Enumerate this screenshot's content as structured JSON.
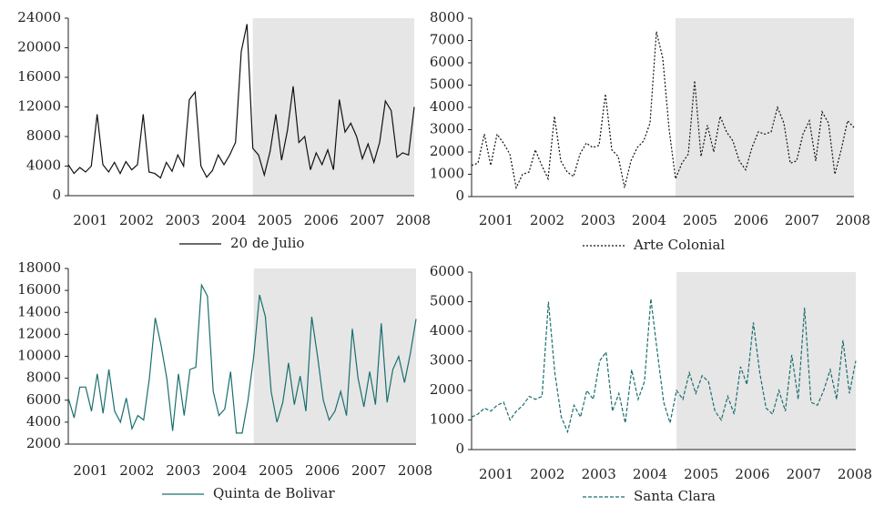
{
  "chart_data": [
    {
      "type": "line",
      "xlim": [
        2000.5,
        2008
      ],
      "xticks": [
        2001,
        2002,
        2003,
        2004,
        2005,
        2006,
        2007,
        2008
      ],
      "ylim": [
        0,
        24000
      ],
      "yticks": [
        0,
        4000,
        8000,
        12000,
        16000,
        20000,
        24000
      ],
      "shaded_xlim": [
        2004.5,
        2008
      ],
      "x": [
        2000.5,
        2000.625,
        2000.75,
        2000.875,
        2001,
        2001.125,
        2001.25,
        2001.375,
        2001.5,
        2001.625,
        2001.75,
        2001.875,
        2002,
        2002.125,
        2002.25,
        2002.375,
        2002.5,
        2002.625,
        2002.75,
        2002.875,
        2003,
        2003.125,
        2003.25,
        2003.375,
        2003.5,
        2003.625,
        2003.75,
        2003.875,
        2004,
        2004.125,
        2004.25,
        2004.375,
        2004.5,
        2004.625,
        2004.75,
        2004.875,
        2005,
        2005.125,
        2005.25,
        2005.375,
        2005.5,
        2005.625,
        2005.75,
        2005.875,
        2006,
        2006.125,
        2006.25,
        2006.375,
        2006.5,
        2006.625,
        2006.75,
        2006.875,
        2007,
        2007.125,
        2007.25,
        2007.375,
        2007.5,
        2007.625,
        2007.75,
        2007.875,
        2008
      ],
      "series": [
        {
          "name": "20 de Julio",
          "color": "#111111",
          "dash": "solid",
          "values": [
            4200,
            3000,
            3800,
            3200,
            4000,
            11000,
            4200,
            3200,
            4500,
            3000,
            4600,
            3500,
            4200,
            11000,
            3200,
            3000,
            2400,
            4500,
            3300,
            5500,
            4000,
            13000,
            14000,
            4000,
            2500,
            3400,
            5500,
            4200,
            5500,
            7200,
            19500,
            23200,
            6400,
            5500,
            2800,
            6000,
            11000,
            4800,
            8800,
            14800,
            7200,
            8000,
            3500,
            5800,
            4200,
            6200,
            3500,
            13000,
            8600,
            9800,
            8000,
            5000,
            7000,
            4500,
            7200,
            12800,
            11500,
            5200,
            5800,
            5500,
            12000
          ]
        }
      ]
    },
    {
      "type": "line",
      "xlim": [
        2000.5,
        2008
      ],
      "xticks": [
        2001,
        2002,
        2003,
        2004,
        2005,
        2006,
        2007,
        2008
      ],
      "ylim": [
        0,
        8000
      ],
      "yticks": [
        0,
        1000,
        2000,
        3000,
        4000,
        5000,
        6000,
        7000,
        8000
      ],
      "shaded_xlim": [
        2004.5,
        2008
      ],
      "x": [
        2000.5,
        2000.625,
        2000.75,
        2000.875,
        2001,
        2001.125,
        2001.25,
        2001.375,
        2001.5,
        2001.625,
        2001.75,
        2001.875,
        2002,
        2002.125,
        2002.25,
        2002.375,
        2002.5,
        2002.625,
        2002.75,
        2002.875,
        2003,
        2003.125,
        2003.25,
        2003.375,
        2003.5,
        2003.625,
        2003.75,
        2003.875,
        2004,
        2004.125,
        2004.25,
        2004.375,
        2004.5,
        2004.625,
        2004.75,
        2004.875,
        2005,
        2005.125,
        2005.25,
        2005.375,
        2005.5,
        2005.625,
        2005.75,
        2005.875,
        2006,
        2006.125,
        2006.25,
        2006.375,
        2006.5,
        2006.625,
        2006.75,
        2006.875,
        2007,
        2007.125,
        2007.25,
        2007.375,
        2007.5,
        2007.625,
        2007.75,
        2007.875,
        2008
      ],
      "series": [
        {
          "name": "Arte Colonial",
          "color": "#111111",
          "dash": "dotted",
          "values": [
            1400,
            1500,
            2800,
            1400,
            2800,
            2400,
            1900,
            400,
            1000,
            1100,
            2100,
            1400,
            800,
            3600,
            1600,
            1100,
            900,
            1900,
            2400,
            2200,
            2300,
            4600,
            2100,
            1800,
            400,
            1600,
            2200,
            2500,
            3300,
            7400,
            6200,
            3000,
            800,
            1500,
            1900,
            5200,
            1800,
            3200,
            2000,
            3600,
            2900,
            2500,
            1600,
            1200,
            2200,
            2900,
            2800,
            2900,
            4000,
            3300,
            1500,
            1600,
            2800,
            3400,
            1600,
            3800,
            3300,
            1000,
            2100,
            3400,
            3100
          ]
        }
      ]
    },
    {
      "type": "line",
      "xlim": [
        2000.5,
        2008
      ],
      "xticks": [
        2001,
        2002,
        2003,
        2004,
        2005,
        2006,
        2007,
        2008
      ],
      "ylim": [
        2000,
        18000
      ],
      "yticks": [
        2000,
        4000,
        6000,
        8000,
        10000,
        12000,
        14000,
        16000,
        18000
      ],
      "shaded_xlim": [
        2004.5,
        2008
      ],
      "x": [
        2000.5,
        2000.625,
        2000.75,
        2000.875,
        2001,
        2001.125,
        2001.25,
        2001.375,
        2001.5,
        2001.625,
        2001.75,
        2001.875,
        2002,
        2002.125,
        2002.25,
        2002.375,
        2002.5,
        2002.625,
        2002.75,
        2002.875,
        2003,
        2003.125,
        2003.25,
        2003.375,
        2003.5,
        2003.625,
        2003.75,
        2003.875,
        2004,
        2004.125,
        2004.25,
        2004.375,
        2004.5,
        2004.625,
        2004.75,
        2004.875,
        2005,
        2005.125,
        2005.25,
        2005.375,
        2005.5,
        2005.625,
        2005.75,
        2005.875,
        2006,
        2006.125,
        2006.25,
        2006.375,
        2006.5,
        2006.625,
        2006.75,
        2006.875,
        2007,
        2007.125,
        2007.25,
        2007.375,
        2007.5,
        2007.625,
        2007.75,
        2007.875,
        2008
      ],
      "series": [
        {
          "name": "Quinta de Bolivar",
          "color": "#1b6e6e",
          "dash": "solid",
          "values": [
            6200,
            4400,
            7200,
            7200,
            5000,
            8400,
            4800,
            8800,
            5000,
            4000,
            6200,
            3400,
            4600,
            4200,
            8000,
            13500,
            11000,
            8000,
            3200,
            8400,
            4600,
            8800,
            9000,
            16500,
            15500,
            6800,
            4600,
            5200,
            8600,
            3000,
            3000,
            6000,
            10000,
            15600,
            13600,
            6800,
            4000,
            5800,
            9400,
            5600,
            8200,
            5000,
            13600,
            10000,
            6000,
            4200,
            5000,
            6800,
            4600,
            12500,
            8000,
            5400,
            8600,
            5600,
            13000,
            5800,
            8800,
            10000,
            7600,
            10200,
            13400
          ]
        }
      ]
    },
    {
      "type": "line",
      "xlim": [
        2000.5,
        2008
      ],
      "xticks": [
        2001,
        2002,
        2003,
        2004,
        2005,
        2006,
        2007,
        2008
      ],
      "ylim": [
        0,
        6000
      ],
      "yticks": [
        0,
        1000,
        2000,
        3000,
        4000,
        5000,
        6000
      ],
      "shaded_xlim": [
        2004.5,
        2008
      ],
      "x": [
        2000.5,
        2000.625,
        2000.75,
        2000.875,
        2001,
        2001.125,
        2001.25,
        2001.375,
        2001.5,
        2001.625,
        2001.75,
        2001.875,
        2002,
        2002.125,
        2002.25,
        2002.375,
        2002.5,
        2002.625,
        2002.75,
        2002.875,
        2003,
        2003.125,
        2003.25,
        2003.375,
        2003.5,
        2003.625,
        2003.75,
        2003.875,
        2004,
        2004.125,
        2004.25,
        2004.375,
        2004.5,
        2004.625,
        2004.75,
        2004.875,
        2005,
        2005.125,
        2005.25,
        2005.375,
        2005.5,
        2005.625,
        2005.75,
        2005.875,
        2006,
        2006.125,
        2006.25,
        2006.375,
        2006.5,
        2006.625,
        2006.75,
        2006.875,
        2007,
        2007.125,
        2007.25,
        2007.375,
        2007.5,
        2007.625,
        2007.75,
        2007.875,
        2008
      ],
      "series": [
        {
          "name": "Santa Clara",
          "color": "#1b6e6e",
          "dash": "dashed",
          "values": [
            1100,
            1200,
            1400,
            1300,
            1500,
            1600,
            1000,
            1300,
            1500,
            1800,
            1700,
            1800,
            5000,
            2600,
            1100,
            600,
            1500,
            1100,
            2000,
            1700,
            3000,
            3300,
            1300,
            1900,
            900,
            2700,
            1700,
            2300,
            5100,
            3300,
            1600,
            900,
            2000,
            1700,
            2600,
            1900,
            2500,
            2300,
            1300,
            1000,
            1800,
            1200,
            2800,
            2200,
            4300,
            2600,
            1400,
            1200,
            2000,
            1300,
            3200,
            1700,
            4800,
            1600,
            1500,
            2000,
            2700,
            1700,
            3700,
            1900,
            3000
          ]
        }
      ]
    }
  ]
}
